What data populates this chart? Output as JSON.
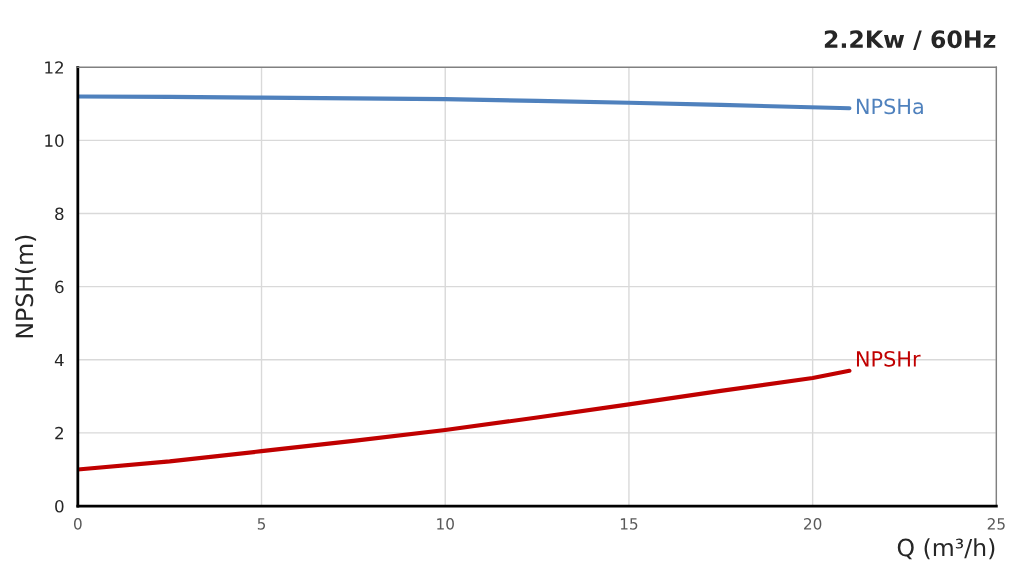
{
  "chart_data": {
    "type": "line",
    "title": "2.2Kw / 60Hz",
    "xlabel": "Q (m³/h)",
    "ylabel": "NPSH(m)",
    "xlim": [
      0,
      25
    ],
    "xticks": [
      0,
      5,
      10,
      15,
      20,
      25
    ],
    "ylim": [
      0,
      12
    ],
    "yticks": [
      0,
      2,
      4,
      6,
      8,
      10,
      12
    ],
    "grid": true,
    "line_style": "solid",
    "marker": "none",
    "series": [
      {
        "name": "NPSHa",
        "color": "#4f81bd",
        "x": [
          0,
          2.5,
          5,
          7.5,
          10,
          12.5,
          15,
          17.5,
          21
        ],
        "values": [
          11.2,
          11.19,
          11.17,
          11.15,
          11.13,
          11.08,
          11.03,
          10.97,
          10.88
        ]
      },
      {
        "name": "NPSHr",
        "color": "#c00000",
        "x": [
          0,
          2.5,
          5,
          7.5,
          10,
          12.5,
          15,
          17.5,
          20,
          21
        ],
        "values": [
          1.0,
          1.22,
          1.5,
          1.78,
          2.08,
          2.42,
          2.78,
          3.15,
          3.5,
          3.7
        ]
      }
    ]
  }
}
